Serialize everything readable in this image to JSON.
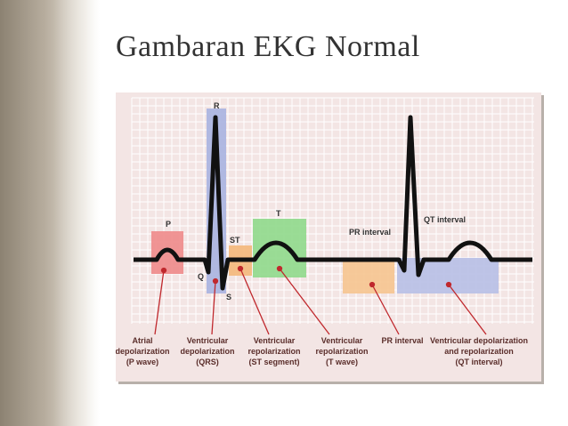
{
  "slide": {
    "title": "Gambaran EKG Normal"
  },
  "ecg": {
    "waves": {
      "p": "P",
      "q": "Q",
      "r": "R",
      "s": "S",
      "st": "ST",
      "t": "T"
    },
    "interval_labels": {
      "pr": "PR interval",
      "qt": "QT interval"
    },
    "captions": [
      [
        "Atrial",
        "depolarization",
        "(P wave)"
      ],
      [
        "Ventricular",
        "depolarization",
        "(QRS)"
      ],
      [
        "Ventricular",
        "repolarization",
        "(ST segment)"
      ],
      [
        "Ventricular",
        "repolarization",
        "(T wave)"
      ],
      [
        "PR interval"
      ],
      [
        "Ventricular depolarization",
        "and repolarization",
        "(QT interval)"
      ]
    ],
    "colors": {
      "p": "#ee8a8a",
      "qrs": "#a9b3e0",
      "st": "#f4b77a",
      "t": "#8fd98b",
      "pr": "#f6c48f",
      "qt": "#b7bfe6",
      "grid": "#ffffff",
      "trace": "#111111",
      "pointer": "#c0282d",
      "background": "#f3e5e4"
    }
  }
}
